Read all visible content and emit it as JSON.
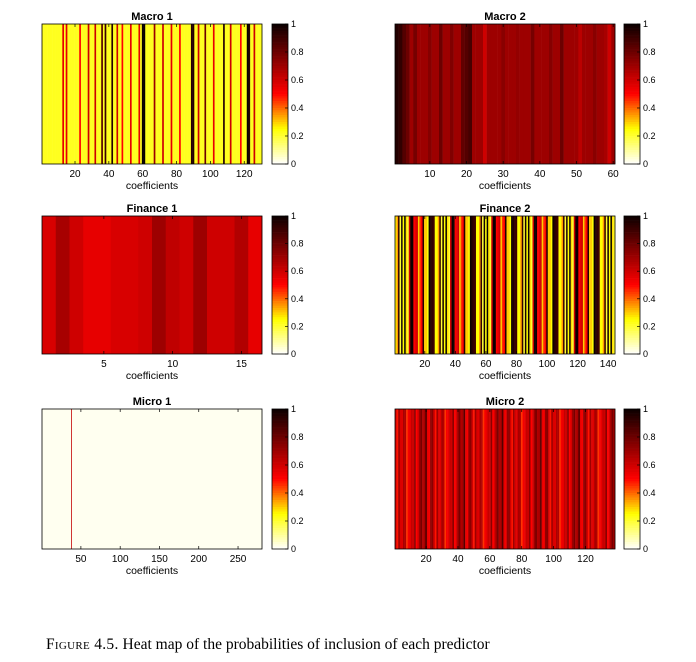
{
  "caption": {
    "label": "Figure 4.5.",
    "text": "Heat map of the probabilities of inclusion of each predictor"
  },
  "colorbar_ticks": [
    0,
    0.2,
    0.4,
    0.6,
    0.8,
    1
  ],
  "colormap": "hot",
  "chart_data": [
    {
      "id": "macro1",
      "type": "heatmap",
      "title": "Macro 1",
      "xlabel": "coefficients",
      "n": 130,
      "xlim": [
        0.5,
        130.5
      ],
      "xticks": [
        20,
        40,
        60,
        80,
        100,
        120
      ],
      "clim": [
        0,
        1
      ],
      "colorbar": true,
      "base": 0.22,
      "high": [
        [
          13,
          0.55
        ],
        [
          15,
          0.55
        ],
        [
          23,
          0.5
        ],
        [
          28,
          0.6
        ],
        [
          32,
          0.6
        ],
        [
          36,
          0.85
        ],
        [
          38,
          0.9
        ],
        [
          42,
          0.95
        ],
        [
          45,
          0.6
        ],
        [
          48,
          0.5
        ],
        [
          53,
          0.55
        ],
        [
          58,
          0.55
        ],
        [
          60,
          1
        ],
        [
          61,
          1
        ],
        [
          67,
          0.7
        ],
        [
          72,
          0.6
        ],
        [
          77,
          0.55
        ],
        [
          82,
          0.5
        ],
        [
          89,
          0.95
        ],
        [
          90,
          0.95
        ],
        [
          93,
          0.6
        ],
        [
          97,
          0.8
        ],
        [
          102,
          0.55
        ],
        [
          108,
          0.95
        ],
        [
          112,
          0.6
        ],
        [
          118,
          0.5
        ],
        [
          122,
          1
        ],
        [
          123,
          0.95
        ],
        [
          126,
          0.6
        ]
      ]
    },
    {
      "id": "macro2",
      "type": "heatmap",
      "title": "Macro 2",
      "xlabel": "coefficients",
      "n": 60,
      "xlim": [
        0.5,
        60.5
      ],
      "xticks": [
        10,
        20,
        30,
        40,
        50,
        60
      ],
      "clim": [
        0,
        1
      ],
      "colorbar": true,
      "base": 0.7,
      "high": [
        [
          1,
          0.95
        ],
        [
          2,
          0.92
        ],
        [
          3,
          0.85
        ],
        [
          4,
          0.8
        ],
        [
          6,
          0.78
        ],
        [
          10,
          0.75
        ],
        [
          13,
          0.8
        ],
        [
          16,
          0.76
        ],
        [
          19,
          0.82
        ],
        [
          20,
          0.85
        ],
        [
          21,
          0.88
        ],
        [
          25,
          0.6
        ],
        [
          30,
          0.74
        ],
        [
          34,
          0.72
        ],
        [
          38,
          0.78
        ],
        [
          43,
          0.75
        ],
        [
          46,
          0.8
        ],
        [
          51,
          0.64
        ],
        [
          55,
          0.74
        ],
        [
          58,
          0.68
        ],
        [
          59,
          0.6
        ]
      ]
    },
    {
      "id": "finance1",
      "type": "heatmap",
      "title": "Finance 1",
      "xlabel": "coefficients",
      "n": 16,
      "xlim": [
        0.5,
        16.5
      ],
      "xticks": [
        5,
        10,
        15
      ],
      "clim": [
        0,
        1
      ],
      "colorbar": true,
      "values": [
        0.58,
        0.68,
        0.6,
        0.55,
        0.55,
        0.58,
        0.58,
        0.6,
        0.7,
        0.63,
        0.6,
        0.7,
        0.6,
        0.6,
        0.66,
        0.55
      ]
    },
    {
      "id": "finance2",
      "type": "heatmap",
      "title": "Finance 2",
      "xlabel": "coefficients",
      "n": 144,
      "xlim": [
        0.5,
        144.5
      ],
      "xticks": [
        20,
        40,
        60,
        80,
        100,
        120,
        140
      ],
      "clim": [
        0,
        1
      ],
      "colorbar": true,
      "pattern": "alternating",
      "values_pattern": [
        0.25,
        1,
        0.3,
        0.9,
        0.2,
        0.55,
        0.95,
        0.35,
        1,
        0.45,
        0.25,
        0.98,
        0.6,
        0.3,
        0.92,
        0.28,
        0.5,
        1
      ]
    },
    {
      "id": "micro1",
      "type": "heatmap",
      "title": "Micro 1",
      "xlabel": "coefficients",
      "n": 280,
      "xlim": [
        0.5,
        280.5
      ],
      "xticks": [
        50,
        100,
        150,
        200,
        250
      ],
      "clim": [
        0,
        1
      ],
      "colorbar": true,
      "base": 0.015,
      "high": [
        [
          38,
          0.62
        ]
      ]
    },
    {
      "id": "micro2",
      "type": "heatmap",
      "title": "Micro 2",
      "xlabel": "coefficients",
      "n": 138,
      "xlim": [
        0.5,
        138.5
      ],
      "xticks": [
        20,
        40,
        60,
        80,
        100,
        120
      ],
      "clim": [
        0,
        1
      ],
      "colorbar": true,
      "pattern": "alternating",
      "values_pattern": [
        0.6,
        0.72,
        0.55,
        0.45,
        0.68,
        0.78,
        0.58,
        0.48,
        0.74,
        0.62,
        0.52,
        0.85,
        0.66,
        0.57,
        0.7,
        0.5
      ]
    }
  ]
}
